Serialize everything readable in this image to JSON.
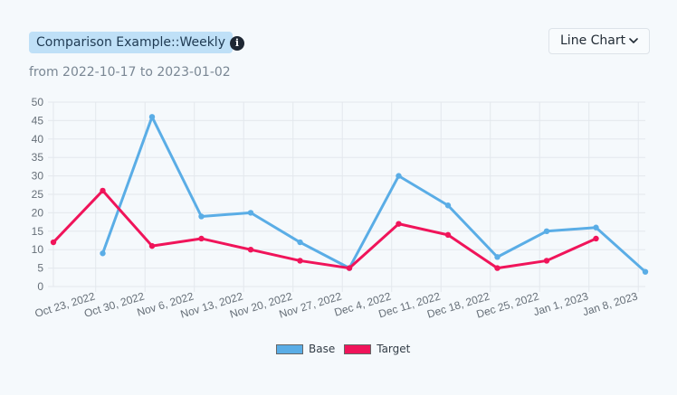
{
  "header": {
    "title": "Comparison Example::Weekly",
    "subtitle": "from 2022-10-17 to 2023-01-02",
    "info_icon": "info-icon",
    "chart_type_label": "Line Chart",
    "chevron_icon": "chevron-down-icon"
  },
  "colors": {
    "base": "#5aade6",
    "target": "#f0145a",
    "title_pill_bg": "#bfe0f7",
    "grid": "#e3e8ed"
  },
  "chart_data": {
    "type": "line",
    "x_tick_labels": [
      "Oct 23, 2022",
      "Oct 30, 2022",
      "Nov 6, 2022",
      "Nov 13, 2022",
      "Nov 20, 2022",
      "Nov 27, 2022",
      "Dec 4, 2022",
      "Dec 11, 2022",
      "Dec 18, 2022",
      "Dec 25, 2022",
      "Jan 1, 2023",
      "Jan 8, 2023"
    ],
    "ylim": [
      0,
      50
    ],
    "y_ticks": [
      0,
      5,
      10,
      15,
      20,
      25,
      30,
      35,
      40,
      45,
      50
    ],
    "grid": true,
    "legend_position": "bottom",
    "series": [
      {
        "name": "Base",
        "points": [
          {
            "x": "2022-10-24",
            "y": 9
          },
          {
            "x": "2022-10-31",
            "y": 46
          },
          {
            "x": "2022-11-07",
            "y": 19
          },
          {
            "x": "2022-11-14",
            "y": 20
          },
          {
            "x": "2022-11-21",
            "y": 12
          },
          {
            "x": "2022-11-28",
            "y": 5
          },
          {
            "x": "2022-12-05",
            "y": 30
          },
          {
            "x": "2022-12-12",
            "y": 22
          },
          {
            "x": "2022-12-19",
            "y": 8
          },
          {
            "x": "2022-12-26",
            "y": 15
          },
          {
            "x": "2023-01-02",
            "y": 16
          },
          {
            "x": "2023-01-09",
            "y": 4
          }
        ]
      },
      {
        "name": "Target",
        "points": [
          {
            "x": "2022-10-17",
            "y": 12
          },
          {
            "x": "2022-10-24",
            "y": 26
          },
          {
            "x": "2022-10-31",
            "y": 11
          },
          {
            "x": "2022-11-07",
            "y": 13
          },
          {
            "x": "2022-11-14",
            "y": 10
          },
          {
            "x": "2022-11-21",
            "y": 7
          },
          {
            "x": "2022-11-28",
            "y": 5
          },
          {
            "x": "2022-12-05",
            "y": 17
          },
          {
            "x": "2022-12-12",
            "y": 14
          },
          {
            "x": "2022-12-19",
            "y": 5
          },
          {
            "x": "2022-12-26",
            "y": 7
          },
          {
            "x": "2023-01-02",
            "y": 13
          }
        ]
      }
    ]
  }
}
